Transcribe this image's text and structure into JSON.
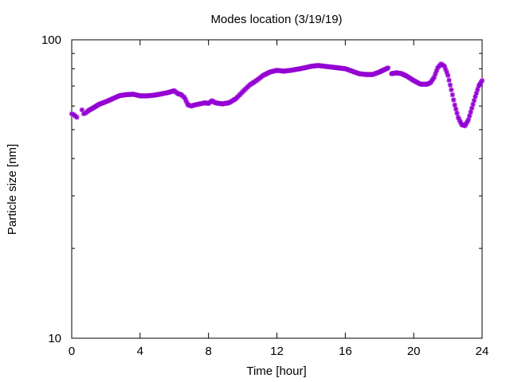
{
  "chart_data": {
    "type": "scatter",
    "title": "Modes location (3/19/19)",
    "xlabel": "Time [hour]",
    "ylabel": "Particle size [nm]",
    "xlim": [
      0,
      24
    ],
    "ylim": [
      10,
      100
    ],
    "yscale": "log",
    "xticks": [
      "0",
      "4",
      "8",
      "12",
      "16",
      "20",
      "24"
    ],
    "yticks": [
      "10",
      "100"
    ],
    "grid": false,
    "legend": "none",
    "marker": "asterisk",
    "color": "#9400d3",
    "x": [
      0.0,
      0.1,
      0.2,
      0.3,
      0.6,
      0.7,
      0.8,
      1.0,
      1.3,
      1.6,
      2.0,
      2.4,
      2.8,
      3.2,
      3.6,
      4.0,
      4.4,
      4.8,
      5.2,
      5.6,
      6.0,
      6.2,
      6.4,
      6.6,
      6.8,
      7.0,
      7.2,
      7.5,
      7.8,
      8.0,
      8.2,
      8.4,
      8.8,
      9.2,
      9.6,
      10.0,
      10.4,
      10.8,
      11.2,
      11.6,
      12.0,
      12.4,
      12.8,
      13.2,
      13.6,
      14.0,
      14.4,
      14.8,
      15.2,
      15.6,
      16.0,
      16.4,
      16.8,
      17.2,
      17.6,
      18.0,
      18.3,
      18.5,
      18.7,
      19.0,
      19.3,
      19.6,
      20.0,
      20.4,
      20.8,
      21.0,
      21.2,
      21.4,
      21.6,
      21.8,
      22.0,
      22.2,
      22.4,
      22.6,
      22.8,
      23.0,
      23.2,
      23.4,
      23.6,
      23.8,
      24.0
    ],
    "y": [
      56.5,
      56.2,
      55.6,
      55.0,
      58.2,
      56.5,
      56.8,
      58.0,
      59.3,
      60.8,
      62.0,
      63.5,
      65.0,
      65.5,
      65.7,
      64.9,
      64.9,
      65.2,
      65.8,
      66.5,
      67.5,
      66.0,
      65.5,
      64.0,
      60.5,
      60.0,
      60.5,
      61.0,
      61.5,
      61.2,
      62.5,
      61.5,
      61.0,
      61.5,
      63.5,
      67.0,
      70.5,
      73.0,
      76.0,
      78.0,
      79.0,
      78.5,
      79.0,
      79.7,
      80.5,
      81.5,
      82.0,
      81.5,
      81.0,
      80.5,
      80.0,
      78.5,
      77.0,
      76.5,
      76.5,
      78.0,
      79.5,
      80.5,
      77.0,
      77.5,
      77.0,
      75.5,
      73.0,
      71.0,
      71.0,
      72.0,
      75.0,
      80.5,
      83.0,
      81.5,
      76.0,
      68.0,
      60.5,
      55.0,
      52.0,
      51.5,
      54.0,
      59.0,
      64.5,
      70.0,
      73.0
    ]
  }
}
